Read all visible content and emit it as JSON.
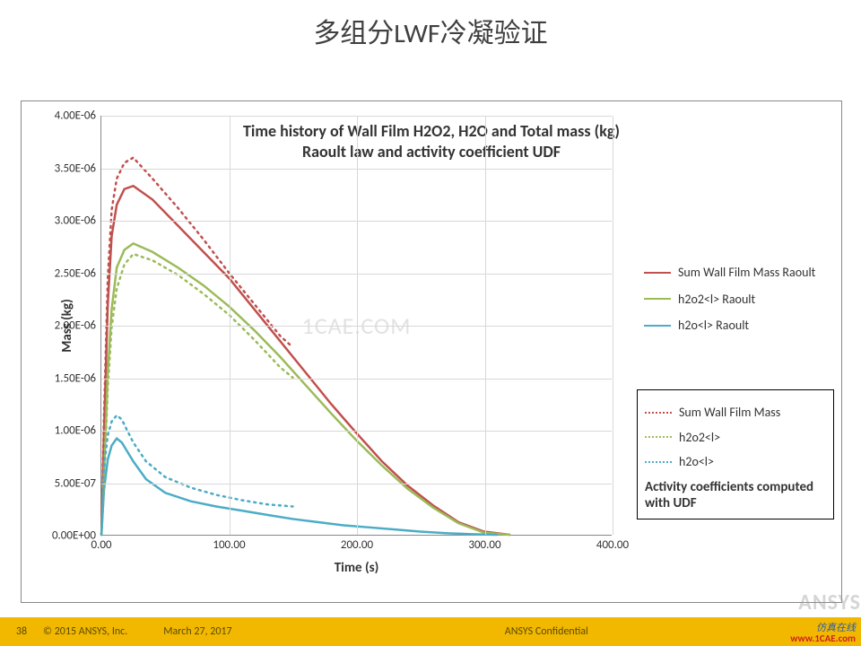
{
  "slide": {
    "title": "多组分LWF冷凝验证"
  },
  "chart": {
    "type": "line",
    "title_line1": "Time history of Wall Film H2O2, H2O and Total mass  (kg)",
    "title_line2": "Raoult law and activity coefficient UDF",
    "xlabel": "Time (s)",
    "ylabel": "Mass (kg)",
    "xlim": [
      0,
      400
    ],
    "ylim": [
      0,
      4e-06
    ],
    "xtick_step": 100,
    "ytick_step": 5e-07,
    "xtick_labels": [
      "0.00",
      "100.00",
      "200.00",
      "300.00",
      "400.00"
    ],
    "ytick_labels": [
      "0.00E+00",
      "5.00E-07",
      "1.00E-06",
      "1.50E-06",
      "2.00E-06",
      "2.50E-06",
      "3.00E-06",
      "3.50E-06",
      "4.00E-06"
    ],
    "background_color": "#ffffff",
    "grid_color": "#d8d8d8",
    "plot_border_color": "#888888",
    "title_fontsize": 18,
    "label_fontsize": 15,
    "tick_fontsize": 13,
    "series": [
      {
        "name": "Sum Wall Film Mass Raoult",
        "color": "#c0504d",
        "dash": "solid",
        "width": 2.5,
        "x": [
          0,
          2,
          5,
          8,
          12,
          18,
          25,
          40,
          60,
          80,
          100,
          120,
          140,
          160,
          180,
          200,
          220,
          240,
          260,
          280,
          300,
          320
        ],
        "y": [
          0,
          1e-06,
          2.2e-06,
          2.85e-06,
          3.15e-06,
          3.3e-06,
          3.33e-06,
          3.2e-06,
          2.95e-06,
          2.7e-06,
          2.45e-06,
          2.15e-06,
          1.85e-06,
          1.55e-06,
          1.25e-06,
          9.7e-07,
          7e-07,
          4.7e-07,
          2.8e-07,
          1.2e-07,
          3e-08,
          0.0
        ]
      },
      {
        "name": "h2o2<l> Raoult",
        "color": "#9bbb59",
        "dash": "solid",
        "width": 2.5,
        "x": [
          0,
          2,
          5,
          8,
          12,
          18,
          25,
          40,
          60,
          80,
          100,
          120,
          140,
          160,
          180,
          200,
          220,
          240,
          260,
          280,
          300,
          320
        ],
        "y": [
          0,
          5.7e-07,
          1.55e-06,
          2.15e-06,
          2.55e-06,
          2.72e-06,
          2.78e-06,
          2.7e-06,
          2.55e-06,
          2.38e-06,
          2.18e-06,
          1.95e-06,
          1.7e-06,
          1.43e-06,
          1.16e-06,
          9e-07,
          6.6e-07,
          4.4e-07,
          2.6e-07,
          1.1e-07,
          2e-08,
          0.0
        ]
      },
      {
        "name": "h2o<l> Raoult",
        "color": "#4bacc6",
        "dash": "solid",
        "width": 2.5,
        "x": [
          0,
          2,
          5,
          8,
          12,
          16,
          20,
          25,
          35,
          50,
          70,
          90,
          110,
          130,
          150,
          170,
          190,
          210,
          230,
          250,
          270,
          290,
          310
        ],
        "y": [
          0,
          4.3e-07,
          7.2e-07,
          8.5e-07,
          9.2e-07,
          8.8e-07,
          8e-07,
          7e-07,
          5.3e-07,
          4e-07,
          3.2e-07,
          2.7e-07,
          2.3e-07,
          1.9e-07,
          1.5e-07,
          1.2e-07,
          9e-08,
          7e-08,
          5e-08,
          3e-08,
          1.5e-08,
          5e-09,
          0.0
        ]
      },
      {
        "name": "Sum Wall Film Mass",
        "color": "#c0504d",
        "dash": "dotted",
        "width": 2.5,
        "x": [
          0,
          2,
          5,
          8,
          12,
          18,
          25,
          40,
          60,
          80,
          100,
          120,
          140,
          150
        ],
        "y": [
          0,
          1.15e-06,
          2.45e-06,
          3.1e-06,
          3.4e-06,
          3.55e-06,
          3.6e-06,
          3.4e-06,
          3.12e-06,
          2.82e-06,
          2.5e-06,
          2.2e-06,
          1.9e-06,
          1.79e-06
        ]
      },
      {
        "name": "h2o2<l>",
        "color": "#9bbb59",
        "dash": "dotted",
        "width": 2.5,
        "x": [
          0,
          2,
          5,
          8,
          12,
          18,
          25,
          40,
          60,
          80,
          100,
          120,
          140,
          150
        ],
        "y": [
          0,
          5e-07,
          1.4e-06,
          1.98e-06,
          2.35e-06,
          2.58e-06,
          2.68e-06,
          2.62e-06,
          2.48e-06,
          2.3e-06,
          2.1e-06,
          1.86e-06,
          1.6e-06,
          1.5e-06
        ]
      },
      {
        "name": "h2o<l>",
        "color": "#4bacc6",
        "dash": "dotted",
        "width": 2.5,
        "x": [
          0,
          2,
          5,
          8,
          12,
          16,
          20,
          25,
          35,
          50,
          70,
          90,
          110,
          130,
          150
        ],
        "y": [
          0,
          6.5e-07,
          9.5e-07,
          1.08e-06,
          1.14e-06,
          1.1e-06,
          1e-06,
          8.8e-07,
          7e-07,
          5.5e-07,
          4.5e-07,
          3.8e-07,
          3.3e-07,
          2.9e-07,
          2.7e-07
        ]
      }
    ]
  },
  "legend_solid": [
    {
      "label": "Sum Wall Film Mass Raoult",
      "color": "#c0504d",
      "dash": "solid"
    },
    {
      "label": "h2o2<l> Raoult",
      "color": "#9bbb59",
      "dash": "solid"
    },
    {
      "label": "h2o<l> Raoult",
      "color": "#4bacc6",
      "dash": "solid"
    }
  ],
  "legend_dotted": [
    {
      "label": "Sum Wall Film Mass",
      "color": "#c0504d",
      "dash": "dotted"
    },
    {
      "label": "h2o2<l>",
      "color": "#9bbb59",
      "dash": "dotted"
    },
    {
      "label": "h2o<l>",
      "color": "#4bacc6",
      "dash": "dotted"
    }
  ],
  "activity_caption": "Activity coefficients computed with UDF",
  "watermark": "1CAE.COM",
  "footer": {
    "page": "38",
    "copyright": "© 2015 ANSYS, Inc.",
    "date": "March 27, 2017",
    "confidential": "ANSYS Confidential",
    "brand_cn": "仿真在线",
    "brand_url": "www.1CAE.com",
    "ansys_mark": "ANSYS",
    "bar_color": "#f2b800"
  }
}
